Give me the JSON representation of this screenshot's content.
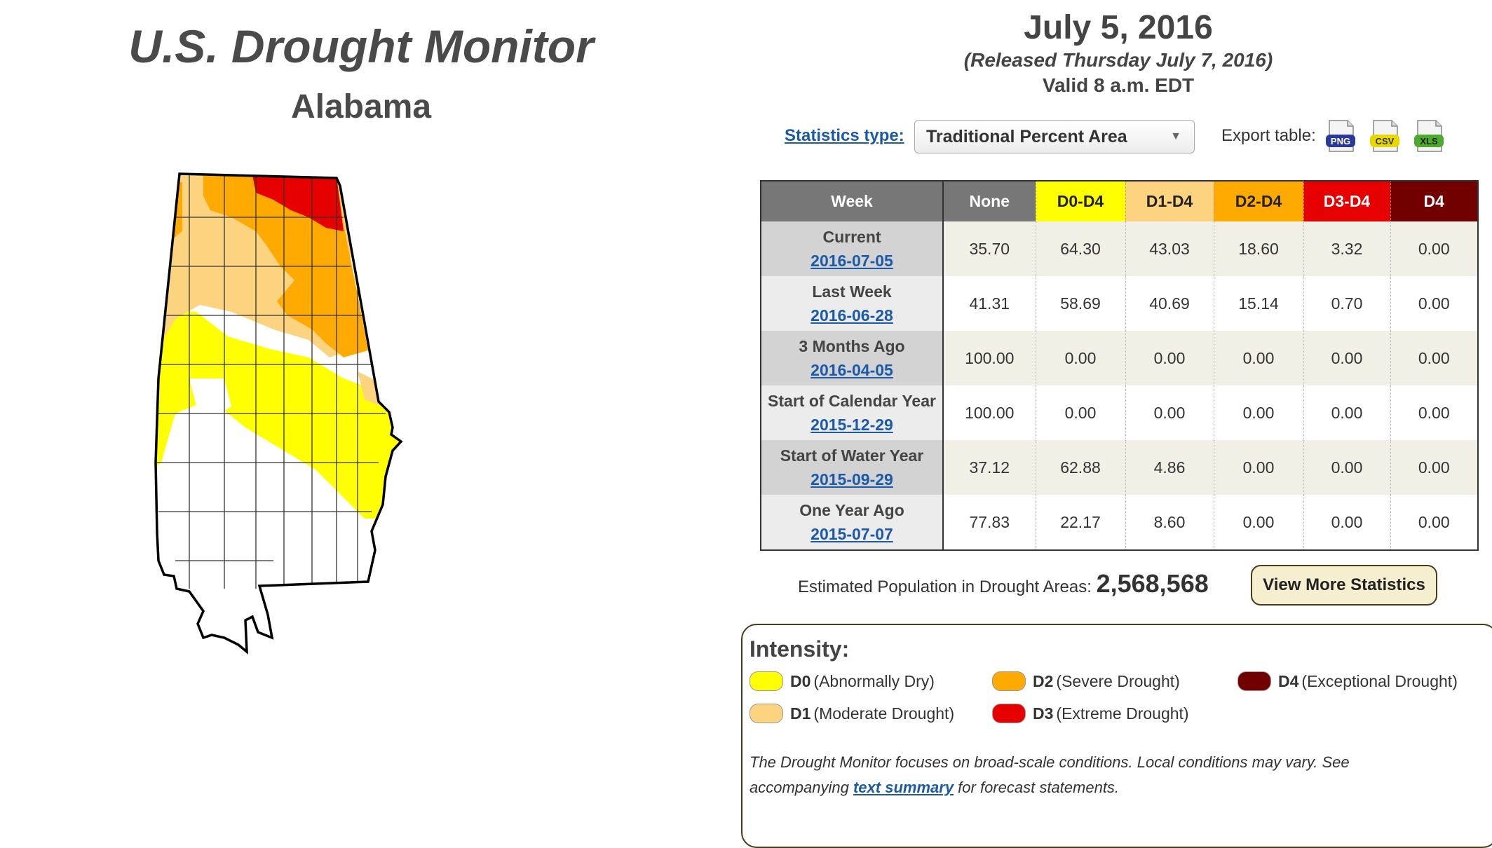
{
  "header": {
    "title": "U.S. Drought Monitor",
    "region": "Alabama",
    "date": "July 5, 2016",
    "released": "(Released Thursday July 7, 2016)",
    "valid": "Valid 8 a.m. EDT"
  },
  "controls": {
    "stats_type_label": "Statistics type:",
    "stats_type_value": "Traditional Percent Area",
    "export_label": "Export table:",
    "export_formats": [
      "PNG",
      "CSV",
      "XLS"
    ]
  },
  "table": {
    "columns": [
      "Week",
      "None",
      "D0-D4",
      "D1-D4",
      "D2-D4",
      "D3-D4",
      "D4"
    ],
    "rows": [
      {
        "label": "Current",
        "date": "2016-07-05",
        "values": [
          "35.70",
          "64.30",
          "43.03",
          "18.60",
          "3.32",
          "0.00"
        ]
      },
      {
        "label": "Last Week",
        "date": "2016-06-28",
        "values": [
          "41.31",
          "58.69",
          "40.69",
          "15.14",
          "0.70",
          "0.00"
        ]
      },
      {
        "label": "3 Months Ago",
        "date": "2016-04-05",
        "values": [
          "100.00",
          "0.00",
          "0.00",
          "0.00",
          "0.00",
          "0.00"
        ]
      },
      {
        "label": "Start of Calendar Year",
        "date": "2015-12-29",
        "values": [
          "100.00",
          "0.00",
          "0.00",
          "0.00",
          "0.00",
          "0.00"
        ]
      },
      {
        "label": "Start of Water Year",
        "date": "2015-09-29",
        "values": [
          "37.12",
          "62.88",
          "4.86",
          "0.00",
          "0.00",
          "0.00"
        ]
      },
      {
        "label": "One Year Ago",
        "date": "2015-07-07",
        "values": [
          "77.83",
          "22.17",
          "8.60",
          "0.00",
          "0.00",
          "0.00"
        ]
      }
    ]
  },
  "population": {
    "label": "Estimated Population in Drought Areas:",
    "value": "2,568,568"
  },
  "buttons": {
    "more_stats": "View More Statistics"
  },
  "legend": {
    "title": "Intensity:",
    "items": [
      {
        "code": "D0",
        "desc": "(Abnormally Dry)",
        "color": "#ffff00"
      },
      {
        "code": "D1",
        "desc": "(Moderate Drought)",
        "color": "#fcd37f"
      },
      {
        "code": "D2",
        "desc": "(Severe Drought)",
        "color": "#ffaa00"
      },
      {
        "code": "D3",
        "desc": "(Extreme Drought)",
        "color": "#e60000"
      },
      {
        "code": "D4",
        "desc": "(Exceptional Drought)",
        "color": "#730000"
      }
    ],
    "note_before": "The Drought Monitor focuses on broad-scale conditions. Local conditions may vary. See accompanying ",
    "note_link": "text summary",
    "note_after": " for forecast statements."
  },
  "colors": {
    "header_gray": "#777777",
    "none": "#ffffff",
    "d0": "#ffff00",
    "d1": "#fcd37f",
    "d2": "#ffaa00",
    "d3": "#e60000",
    "d4": "#730000",
    "link": "#1a5aa8"
  }
}
